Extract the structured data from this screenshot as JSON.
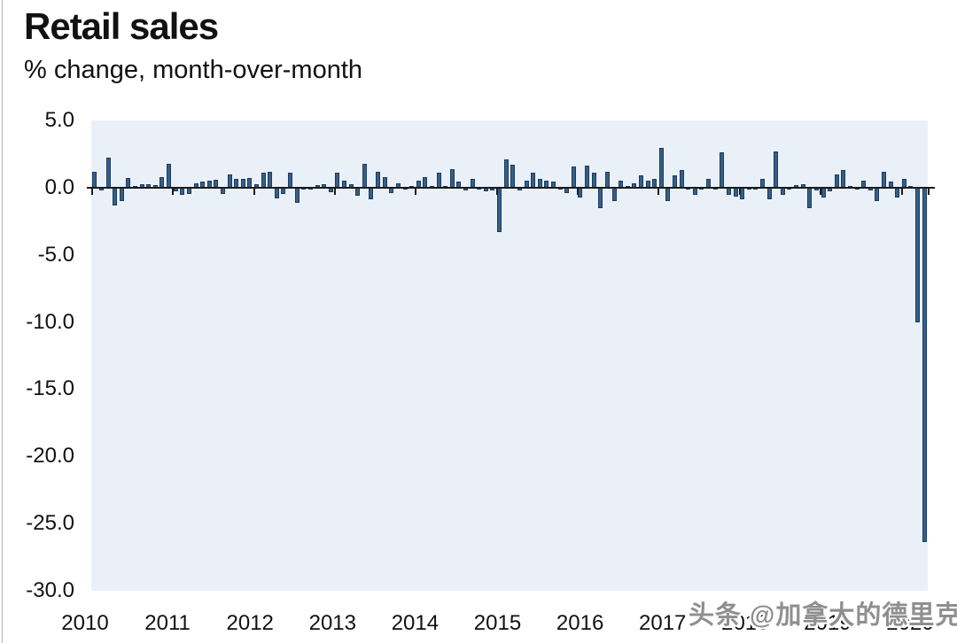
{
  "header": {
    "title": "Retail sales",
    "subtitle": "% change, month-over-month"
  },
  "watermark": {
    "text": "头条 @加拿大的德里克",
    "color": "#8f8f8f"
  },
  "chart_data": {
    "type": "bar",
    "title": "Retail sales",
    "subtitle": "% change, month-over-month",
    "unit": "% month-over-month change",
    "ylim": [
      -30,
      5
    ],
    "ytick_step": 5,
    "ytick_labels": [
      "5.0",
      "0.0",
      "-5.0",
      "-10.0",
      "-15.0",
      "-20.0",
      "-25.0",
      "-30.0"
    ],
    "ytick_values": [
      5,
      0,
      -5,
      -10,
      -15,
      -20,
      -25,
      -30
    ],
    "x_year_labels": [
      "2010",
      "2011",
      "2012",
      "2013",
      "2014",
      "2015",
      "2016",
      "2017",
      "2018",
      "2019",
      "2020"
    ],
    "months_start": "2010-01",
    "months_end": "2020-04",
    "grid": false,
    "legend": false,
    "colors": {
      "bar_fill": "#355f87",
      "bar_border": "#1e3a5a",
      "plot_background": "#e9f0f8",
      "axis_line": "#1a1a1a",
      "text": "#111111"
    },
    "values": [
      1.2,
      -0.2,
      2.2,
      -1.3,
      -1.0,
      0.7,
      0.1,
      0.25,
      0.25,
      0.2,
      0.8,
      1.8,
      -0.3,
      -0.55,
      -0.45,
      0.3,
      0.45,
      0.55,
      0.6,
      -0.45,
      1.0,
      0.65,
      0.65,
      0.7,
      0.25,
      1.1,
      1.2,
      -0.8,
      -0.45,
      1.1,
      -1.1,
      -0.15,
      -0.1,
      0.2,
      0.25,
      -0.35,
      1.1,
      0.55,
      0.25,
      -0.6,
      1.75,
      -0.9,
      1.2,
      0.8,
      -0.4,
      0.35,
      -0.1,
      0.1,
      0.55,
      0.8,
      0.1,
      1.1,
      0.15,
      1.4,
      0.45,
      -0.2,
      0.65,
      -0.1,
      -0.3,
      -0.2,
      -3.3,
      2.1,
      1.7,
      -0.2,
      0.55,
      1.1,
      0.65,
      0.55,
      0.45,
      -0.1,
      -0.4,
      1.55,
      -0.75,
      1.65,
      1.1,
      -1.55,
      1.2,
      -1.0,
      0.55,
      0.1,
      0.3,
      0.9,
      0.55,
      0.65,
      2.95,
      -1.0,
      0.9,
      1.3,
      -0.1,
      -0.55,
      -0.1,
      0.65,
      -0.15,
      2.6,
      -0.55,
      -0.65,
      -0.9,
      -0.1,
      -0.15,
      0.65,
      -0.9,
      2.7,
      -0.55,
      -0.1,
      0.2,
      0.25,
      -1.55,
      -0.2,
      -0.75,
      -0.3,
      1.0,
      1.3,
      0.1,
      -0.1,
      0.55,
      -0.2,
      -1.0,
      1.2,
      0.45,
      -0.75,
      0.65,
      0.1,
      -10.0,
      -26.4
    ]
  }
}
